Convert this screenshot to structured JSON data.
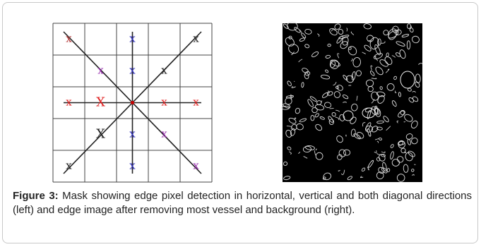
{
  "figure": {
    "mask": {
      "rows": [
        [
          {
            "text": "x",
            "color": "#b03030"
          },
          null,
          {
            "text": "x",
            "color": "#2a2ab8"
          },
          null,
          {
            "text": "x",
            "color": "#222222"
          }
        ],
        [
          null,
          {
            "text": "x",
            "color": "#9a30b0"
          },
          {
            "text": "x",
            "color": "#2a2ab8"
          },
          {
            "text": "x",
            "color": "#222222"
          },
          null
        ],
        [
          {
            "text": "x",
            "color": "#e02020"
          },
          {
            "text": "X",
            "color": "#e02020"
          },
          null,
          {
            "text": "x",
            "color": "#e02020"
          },
          {
            "text": "x",
            "color": "#e02020"
          }
        ],
        [
          null,
          {
            "text": "X",
            "color": "#222222"
          },
          {
            "text": "x",
            "color": "#2a2ab8"
          },
          {
            "text": "x",
            "color": "#9a30b0"
          },
          null
        ],
        [
          {
            "text": "x",
            "color": "#222222"
          },
          null,
          {
            "text": "x",
            "color": "#2a2ab8"
          },
          null,
          {
            "text": "x",
            "color": "#9a30b0"
          }
        ]
      ]
    },
    "caption": {
      "label": "Figure 3:",
      "text": "Mask showing edge pixel detection in horizontal, vertical and both diagonal directions (left) and edge image after removing most vessel and background (right)."
    }
  }
}
